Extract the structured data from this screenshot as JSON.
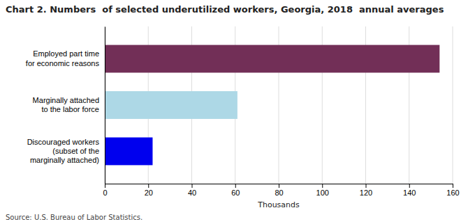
{
  "chart_data": {
    "type": "bar",
    "orientation": "horizontal",
    "title": "Chart 2. Numbers  of selected underutilized workers, Georgia, 2018  annual averages",
    "categories": [
      "Discouraged workers\n(subset of the\nmarginally attached)",
      "Marginally attached\nto the labor force",
      "Employed part time\nfor economic reasons"
    ],
    "values": [
      22,
      61,
      154
    ],
    "colors": [
      "#0000EE",
      "#ADD8E6",
      "#722F57"
    ],
    "x_label": "Thousands",
    "xlim": [
      0,
      160
    ],
    "xticks": [
      0,
      20,
      40,
      60,
      80,
      100,
      120,
      140,
      160
    ],
    "grid": true,
    "source": "Source: U.S. Bureau of Labor Statistics."
  }
}
